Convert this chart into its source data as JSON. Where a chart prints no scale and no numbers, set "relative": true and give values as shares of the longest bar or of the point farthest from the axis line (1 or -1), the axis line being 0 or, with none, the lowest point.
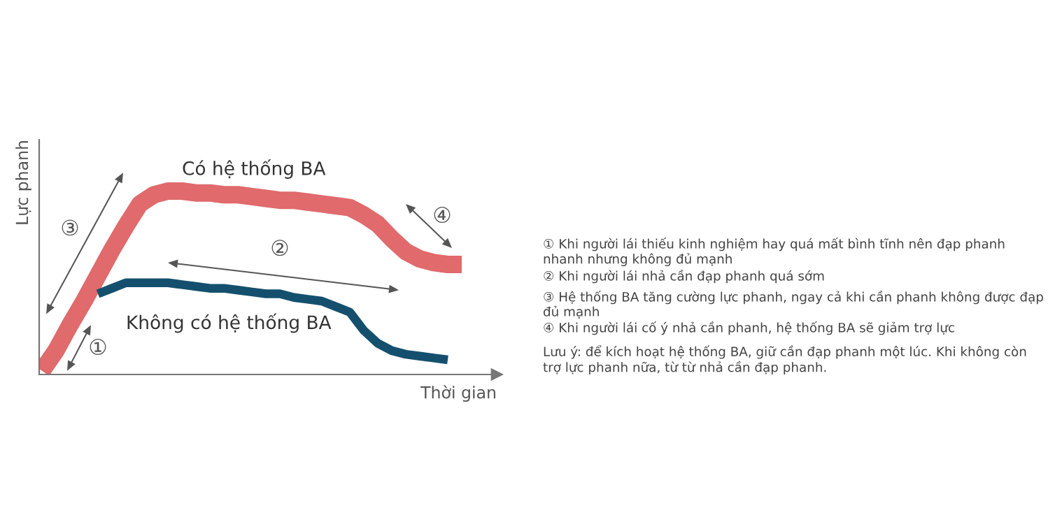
{
  "chart_data": {
    "type": "line",
    "relative": true,
    "xlabel": "Thời gian",
    "ylabel": "Lực phanh",
    "categories": [
      null,
      null,
      null,
      null,
      null,
      null,
      null,
      null,
      null,
      null,
      null,
      null,
      null,
      null,
      null,
      null,
      null,
      null,
      null,
      null,
      null,
      null,
      null,
      null,
      null,
      null,
      null,
      null,
      null,
      null,
      null,
      null,
      null
    ],
    "series": [
      {
        "name": "Có hệ thống BA",
        "color": "#e06a6c",
        "values": [
          0.02,
          0.13,
          0.27,
          0.4,
          0.54,
          0.68,
          0.81,
          0.93,
          0.98,
          1,
          1,
          0.99,
          0.99,
          0.98,
          0.98,
          0.97,
          0.96,
          0.95,
          0.95,
          0.94,
          0.93,
          0.92,
          0.91,
          0.87,
          0.82,
          0.74,
          0.67,
          0.63,
          0.61,
          0.6,
          0.6,
          null,
          null
        ]
      },
      {
        "name": "Không có hệ thống BA",
        "color": "#14506e",
        "values": [
          null,
          null,
          null,
          null,
          0.44,
          0.47,
          0.5,
          0.5,
          0.5,
          0.5,
          0.49,
          0.48,
          0.47,
          0.47,
          0.46,
          0.45,
          0.44,
          0.44,
          0.42,
          0.41,
          0.4,
          0.37,
          0.34,
          0.24,
          0.17,
          0.13,
          0.11,
          0.1,
          0.09,
          0.08,
          null,
          null,
          null
        ]
      }
    ],
    "legend": false,
    "grid": false,
    "annotations": [
      "①",
      "②",
      "③",
      "④",
      "① Khi người lái thiếu kinh nghiệm hay quá mất bình tĩnh nên đạp phanh nhanh nhưng không đủ mạnh",
      "② Khi người lái nhả cần đạp phanh quá sớm",
      "③ Hệ thống BA tăng cường lực phanh, ngay cả khi cần phanh không được đạp đủ mạnh",
      "④ Khi người lái cố ý nhả cần phanh, hệ thống BA sẽ giảm trợ lực",
      "Lưu ý: để kích hoạt hệ thống BA, giữ cần đạp phanh một lúc. Khi không còn trợ lực phanh nữa, từ từ nhả cần đạp phanh."
    ]
  }
}
